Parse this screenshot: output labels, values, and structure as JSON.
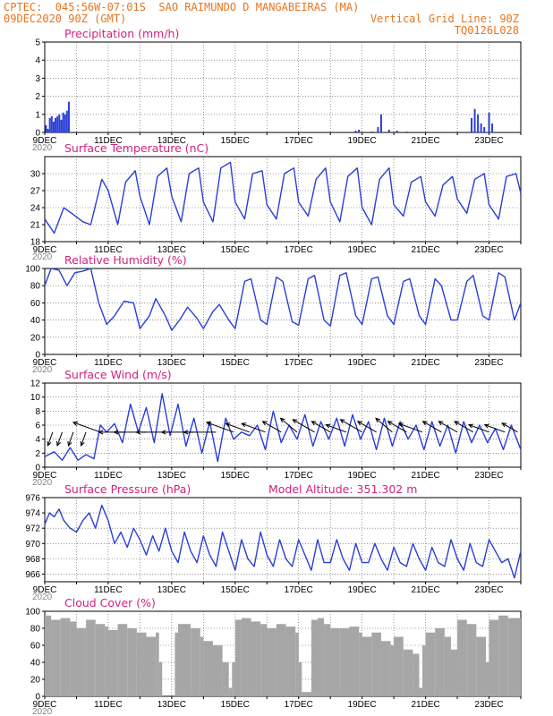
{
  "header": {
    "line1_left": "CPTEC:  045:56W-07:01S  SAO RAIMUNDO D MANGABEIRAS (MA)",
    "line2_left": "09DEC2020 90Z (GMT)",
    "line2_right": "Vertical Grid Line: 90Z",
    "line3_right": "TQ0126L028",
    "model_altitude": "Model Altitude: 351.302 m"
  },
  "colors": {
    "header": "#e8741e",
    "title": "#d4217f",
    "series": "#2a3fd8",
    "cloud": "#a6a6a6"
  },
  "x_axis": {
    "start_day": 9,
    "end_day": 24,
    "tick_labels": [
      "9DEC",
      "11DEC",
      "13DEC",
      "15DEC",
      "17DEC",
      "19DEC",
      "21DEC",
      "23DEC"
    ],
    "year_label": "2020"
  },
  "chart_data": [
    {
      "type": "bar",
      "title": "Precipitation (mm/h)",
      "ylim": [
        0,
        5
      ],
      "yticks": [
        0,
        1,
        2,
        3,
        4,
        5
      ],
      "x": [
        9.04,
        9.1,
        9.16,
        9.22,
        9.28,
        9.34,
        9.4,
        9.46,
        9.52,
        9.58,
        9.64,
        9.7,
        9.76,
        18.8,
        18.9,
        19.3,
        19.5,
        19.6,
        19.85,
        20.1,
        20.4,
        22.45,
        22.55,
        22.65,
        22.75,
        22.85,
        23.0,
        23.1
      ],
      "values": [
        0.4,
        0.2,
        0.8,
        0.9,
        0.6,
        0.8,
        0.9,
        1.0,
        0.7,
        1.1,
        1.0,
        1.2,
        1.7,
        0.1,
        0.15,
        0.05,
        0.3,
        1.0,
        0.15,
        0.1,
        0.05,
        0.8,
        1.3,
        1.0,
        0.5,
        0.3,
        1.1,
        0.5
      ]
    },
    {
      "type": "line",
      "title": "Surface Temperature (nC)",
      "ylim": [
        18,
        33
      ],
      "yticks": [
        18,
        21,
        24,
        27,
        30
      ],
      "x": [
        9.0,
        9.3,
        9.6,
        9.85,
        10.2,
        10.45,
        10.8,
        11.0,
        11.3,
        11.55,
        11.85,
        12.0,
        12.3,
        12.55,
        12.85,
        13.0,
        13.3,
        13.55,
        13.85,
        14.0,
        14.3,
        14.55,
        14.85,
        15.0,
        15.3,
        15.55,
        15.85,
        16.0,
        16.3,
        16.55,
        16.85,
        17.0,
        17.3,
        17.55,
        17.85,
        18.0,
        18.3,
        18.55,
        18.85,
        19.0,
        19.3,
        19.55,
        19.85,
        20.0,
        20.3,
        20.55,
        20.85,
        21.0,
        21.3,
        21.55,
        21.85,
        22.0,
        22.3,
        22.55,
        22.85,
        23.0,
        23.3,
        23.55,
        23.85,
        24.0
      ],
      "values": [
        22.0,
        19.5,
        24.0,
        23.0,
        21.5,
        21.0,
        29.0,
        27.0,
        21.0,
        28.5,
        30.5,
        26.0,
        21.0,
        29.5,
        31.0,
        26.0,
        21.5,
        30.0,
        31.0,
        25.0,
        21.5,
        31.0,
        32.0,
        25.0,
        22.0,
        30.0,
        30.5,
        24.5,
        22.0,
        30.0,
        31.0,
        25.0,
        22.5,
        29.0,
        31.0,
        25.0,
        21.5,
        29.5,
        31.0,
        24.0,
        21.0,
        29.0,
        31.0,
        24.5,
        22.5,
        28.5,
        29.5,
        25.0,
        22.5,
        28.0,
        29.5,
        25.5,
        23.0,
        29.0,
        30.0,
        24.5,
        22.0,
        29.5,
        30.0,
        26.5
      ]
    },
    {
      "type": "line",
      "title": "Relative Humidity (%)",
      "ylim": [
        0,
        100
      ],
      "yticks": [
        0,
        20,
        40,
        60,
        80,
        100
      ],
      "x": [
        9.0,
        9.2,
        9.45,
        9.7,
        9.95,
        10.2,
        10.45,
        10.7,
        10.95,
        11.2,
        11.5,
        11.8,
        12.0,
        12.3,
        12.5,
        12.8,
        13.0,
        13.25,
        13.5,
        13.8,
        14.0,
        14.3,
        14.5,
        14.8,
        15.0,
        15.3,
        15.5,
        15.8,
        16.0,
        16.3,
        16.5,
        16.8,
        17.0,
        17.3,
        17.5,
        17.8,
        18.0,
        18.3,
        18.5,
        18.8,
        19.0,
        19.3,
        19.5,
        19.8,
        20.0,
        20.3,
        20.5,
        20.8,
        21.0,
        21.3,
        21.5,
        21.8,
        22.0,
        22.3,
        22.5,
        22.8,
        23.0,
        23.3,
        23.5,
        23.8,
        24.0
      ],
      "values": [
        80,
        100,
        98,
        80,
        95,
        97,
        100,
        60,
        35,
        45,
        62,
        60,
        30,
        45,
        65,
        45,
        28,
        40,
        55,
        42,
        30,
        50,
        58,
        40,
        30,
        85,
        88,
        40,
        35,
        90,
        85,
        38,
        34,
        88,
        92,
        40,
        33,
        92,
        95,
        45,
        35,
        88,
        90,
        45,
        35,
        85,
        88,
        45,
        35,
        88,
        80,
        40,
        40,
        85,
        92,
        45,
        40,
        95,
        90,
        40,
        60
      ]
    },
    {
      "type": "line",
      "title": "Surface Wind (m/s)",
      "ylim": [
        0,
        12
      ],
      "yticks": [
        0,
        2,
        4,
        6,
        8,
        10,
        12
      ],
      "x": [
        9.0,
        9.3,
        9.55,
        9.8,
        10.05,
        10.3,
        10.55,
        10.75,
        10.95,
        11.2,
        11.45,
        11.7,
        11.95,
        12.2,
        12.45,
        12.7,
        12.95,
        13.2,
        13.45,
        13.7,
        13.95,
        14.2,
        14.45,
        14.7,
        14.95,
        15.2,
        15.45,
        15.7,
        15.95,
        16.2,
        16.45,
        16.7,
        16.95,
        17.2,
        17.45,
        17.7,
        17.95,
        18.2,
        18.45,
        18.7,
        18.95,
        19.2,
        19.45,
        19.7,
        19.95,
        20.2,
        20.45,
        20.7,
        20.95,
        21.2,
        21.45,
        21.7,
        21.95,
        22.2,
        22.45,
        22.7,
        22.95,
        23.2,
        23.45,
        23.7,
        24.0
      ],
      "values": [
        1.5,
        2.2,
        1.0,
        2.8,
        1.0,
        1.8,
        1.2,
        6.0,
        5.0,
        6.2,
        3.5,
        9.0,
        5.0,
        8.5,
        3.5,
        10.5,
        4.5,
        9.0,
        3.0,
        7.0,
        2.0,
        6.5,
        0.8,
        7.0,
        4.0,
        5.0,
        4.5,
        6.0,
        2.5,
        8.0,
        3.5,
        6.0,
        4.0,
        7.5,
        3.0,
        6.5,
        4.0,
        7.0,
        3.0,
        7.5,
        4.0,
        6.5,
        2.5,
        7.0,
        3.0,
        6.5,
        4.0,
        6.0,
        2.5,
        6.5,
        3.0,
        6.0,
        2.0,
        6.5,
        3.5,
        6.0,
        3.5,
        5.5,
        2.5,
        6.0,
        2.5
      ]
    },
    {
      "type": "line",
      "title": "Surface Pressure (hPa)",
      "ylim": [
        965,
        976
      ],
      "yticks": [
        966,
        968,
        970,
        972,
        974,
        976
      ],
      "x": [
        9.0,
        9.15,
        9.3,
        9.45,
        9.6,
        9.8,
        10.0,
        10.2,
        10.4,
        10.6,
        10.8,
        11.0,
        11.2,
        11.4,
        11.6,
        11.8,
        12.0,
        12.2,
        12.4,
        12.6,
        12.8,
        13.0,
        13.2,
        13.4,
        13.6,
        13.8,
        14.0,
        14.2,
        14.4,
        14.6,
        14.8,
        15.0,
        15.2,
        15.4,
        15.6,
        15.8,
        16.0,
        16.2,
        16.4,
        16.6,
        16.8,
        17.0,
        17.2,
        17.4,
        17.6,
        17.8,
        18.0,
        18.2,
        18.4,
        18.6,
        18.8,
        19.0,
        19.2,
        19.4,
        19.6,
        19.8,
        20.0,
        20.2,
        20.4,
        20.6,
        20.8,
        21.0,
        21.2,
        21.4,
        21.6,
        21.8,
        22.0,
        22.2,
        22.4,
        22.6,
        22.8,
        23.0,
        23.2,
        23.4,
        23.6,
        23.8,
        24.0
      ],
      "values": [
        972.5,
        974.0,
        973.5,
        974.5,
        973.0,
        972.0,
        971.5,
        973.0,
        974.0,
        972.0,
        975.0,
        973.0,
        970.0,
        971.5,
        969.5,
        972.0,
        970.5,
        968.5,
        971.0,
        969.0,
        972.0,
        969.0,
        967.5,
        971.5,
        969.0,
        967.5,
        971.0,
        968.5,
        967.0,
        971.5,
        969.0,
        966.5,
        970.5,
        968.0,
        967.0,
        971.5,
        968.5,
        967.0,
        970.5,
        968.0,
        967.0,
        970.5,
        968.5,
        966.5,
        970.5,
        967.5,
        967.5,
        970.5,
        968.0,
        966.5,
        970.0,
        967.5,
        967.5,
        970.0,
        968.0,
        966.5,
        969.5,
        967.5,
        967.0,
        970.0,
        968.0,
        966.5,
        969.5,
        967.5,
        967.0,
        970.5,
        968.0,
        966.5,
        970.0,
        967.5,
        967.0,
        970.5,
        969.0,
        967.5,
        968.0,
        965.5,
        969.0
      ]
    },
    {
      "type": "area",
      "title": "Cloud Cover (%)",
      "ylim": [
        0,
        100
      ],
      "yticks": [
        0,
        20,
        40,
        60,
        80,
        100
      ],
      "x": [
        9.0,
        9.2,
        9.5,
        9.8,
        10.0,
        10.3,
        10.6,
        10.9,
        11.0,
        11.3,
        11.6,
        11.9,
        12.2,
        12.5,
        12.6,
        12.7,
        13.0,
        13.1,
        13.2,
        13.6,
        13.9,
        14.0,
        14.3,
        14.6,
        14.8,
        14.9,
        15.0,
        15.2,
        15.5,
        15.8,
        16.0,
        16.3,
        16.6,
        16.9,
        17.0,
        17.1,
        17.4,
        17.6,
        17.8,
        18.0,
        18.3,
        18.6,
        18.9,
        19.0,
        19.3,
        19.6,
        19.9,
        20.0,
        20.3,
        20.6,
        20.8,
        20.9,
        21.0,
        21.3,
        21.6,
        21.8,
        22.0,
        22.3,
        22.6,
        22.9,
        23.0,
        23.3,
        23.6,
        24.0
      ],
      "values": [
        95,
        90,
        92,
        88,
        80,
        90,
        85,
        82,
        78,
        85,
        80,
        75,
        70,
        75,
        40,
        0,
        0,
        75,
        85,
        80,
        70,
        65,
        60,
        40,
        10,
        40,
        90,
        92,
        88,
        85,
        80,
        85,
        82,
        75,
        40,
        5,
        90,
        92,
        85,
        80,
        80,
        82,
        75,
        70,
        75,
        65,
        60,
        70,
        55,
        50,
        10,
        60,
        75,
        80,
        70,
        55,
        90,
        85,
        70,
        40,
        90,
        95,
        92,
        92
      ]
    }
  ],
  "wind_vectors": {
    "x": [
      9.25,
      9.55,
      9.9,
      10.3,
      10.75,
      11.5,
      12.2,
      12.9,
      13.7,
      14.4,
      14.95,
      15.45,
      15.95,
      16.45,
      16.95,
      17.5,
      18.0,
      18.5,
      19.0,
      19.45,
      19.95,
      20.4,
      20.9,
      21.5,
      22.0,
      22.5,
      23.0,
      23.5,
      23.9
    ],
    "arrow_angle_deg": [
      110,
      110,
      110,
      110,
      -160,
      180,
      180,
      180,
      180,
      180,
      -160,
      -160,
      -160,
      -150,
      -140,
      -150,
      -150,
      -160,
      -150,
      -150,
      -140,
      -150,
      -160,
      -150,
      -150,
      -150,
      -160,
      -160,
      -150
    ],
    "magnitude": [
      2.0,
      2.0,
      2.0,
      2.0,
      4.0,
      3.5,
      4.5,
      4.5,
      4.5,
      4.5,
      4.0,
      3.5,
      3.5,
      3.0,
      3.0,
      3.5,
      3.0,
      3.0,
      3.5,
      3.0,
      3.0,
      3.0,
      3.5,
      3.0,
      3.0,
      3.0,
      3.0,
      3.0,
      2.5
    ]
  }
}
